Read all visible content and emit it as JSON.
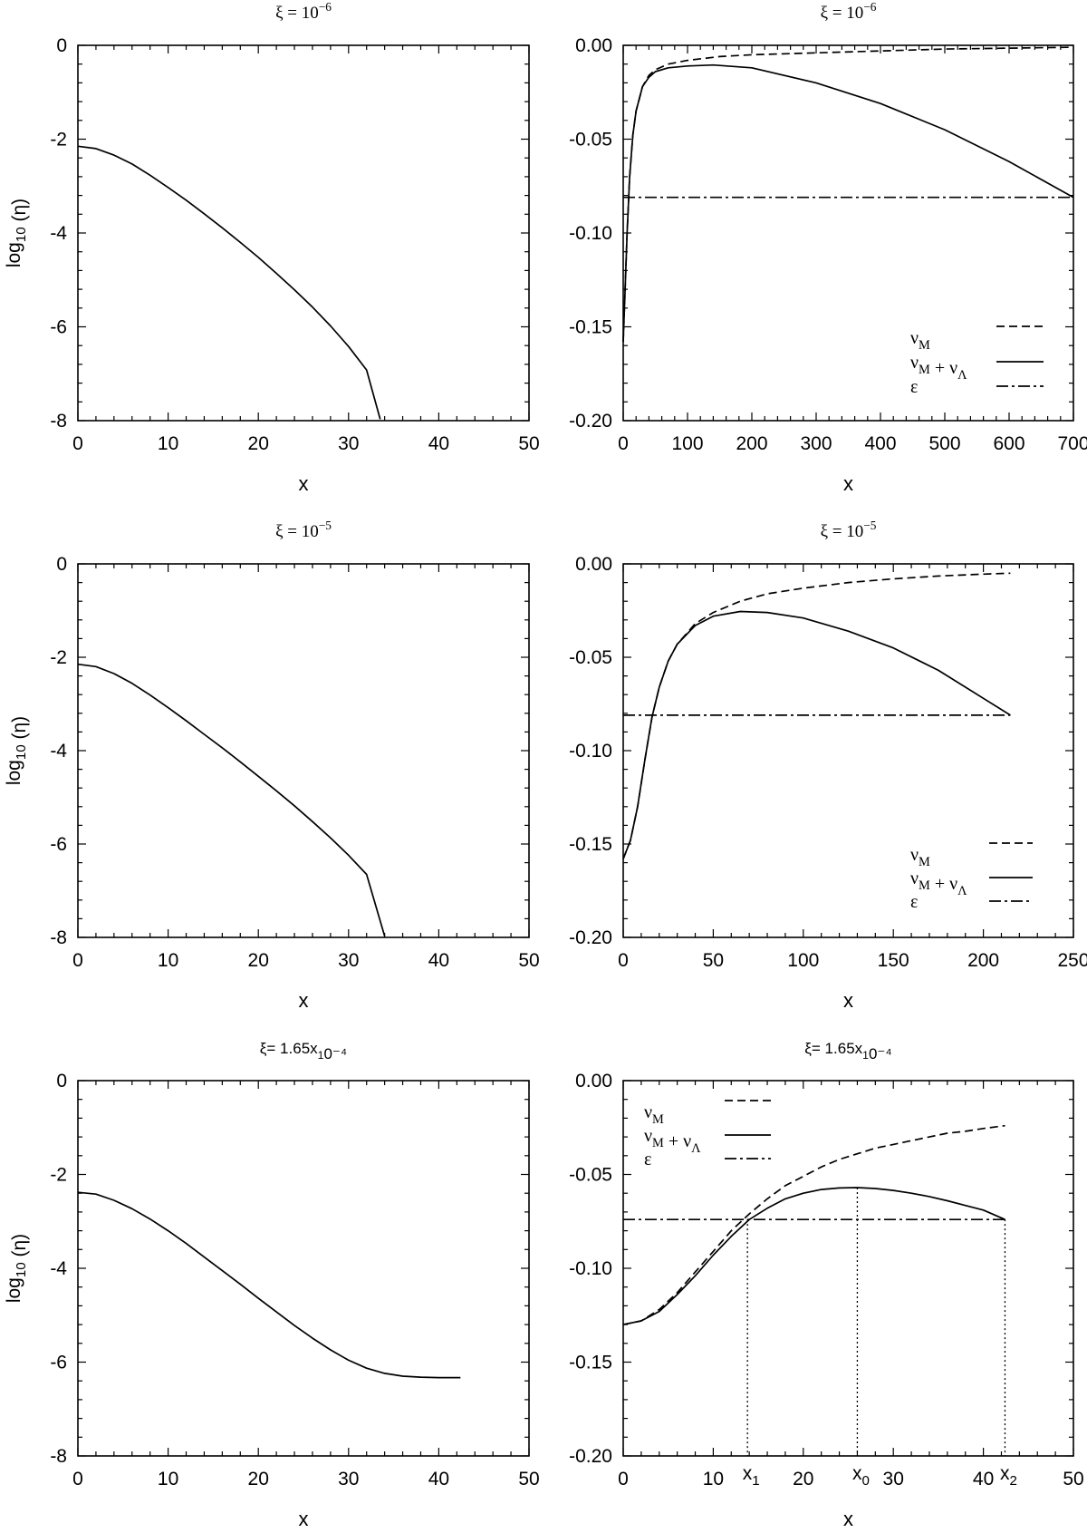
{
  "chart_data": [
    {
      "id": "p1",
      "type": "line",
      "title": "ξ = 10⁻⁶",
      "xlabel": "x",
      "ylabel": "log10 (η)",
      "xlim": [
        0,
        50
      ],
      "ylim": [
        -8,
        0
      ],
      "xticks": [
        0,
        10,
        20,
        30,
        40,
        50
      ],
      "yticks": [
        0,
        -2,
        -4,
        -6,
        -8
      ],
      "series": [
        {
          "style": "solid",
          "x": [
            0,
            2,
            4,
            6,
            8,
            10,
            12,
            14,
            16,
            18,
            20,
            22,
            24,
            26,
            28,
            30,
            32,
            33.5
          ],
          "y": [
            -2.15,
            -2.2,
            -2.34,
            -2.53,
            -2.77,
            -3.03,
            -3.3,
            -3.59,
            -3.89,
            -4.2,
            -4.52,
            -4.86,
            -5.21,
            -5.58,
            -5.98,
            -6.42,
            -6.92,
            -7.97
          ]
        }
      ]
    },
    {
      "id": "p2",
      "type": "line",
      "title": "ξ = 10⁻⁶",
      "xlabel": "x",
      "ylabel": "",
      "xlim": [
        0,
        700
      ],
      "ylim": [
        -0.2,
        0
      ],
      "xticks": [
        0,
        100,
        200,
        300,
        400,
        500,
        600,
        700
      ],
      "yticks": [
        0,
        -0.05,
        -0.1,
        -0.15,
        -0.2
      ],
      "ytick_labels": [
        "0.00",
        "-0.05",
        "-0.10",
        "-0.15",
        "-0.20"
      ],
      "legend_position": "bottom-right",
      "series": [
        {
          "name": "νM",
          "style": "dashed",
          "x": [
            0,
            3,
            6,
            10,
            15,
            20,
            30,
            40,
            50,
            70,
            100,
            150,
            200,
            300,
            400,
            500,
            600,
            700
          ],
          "y": [
            -0.158,
            -0.13,
            -0.1,
            -0.07,
            -0.048,
            -0.035,
            -0.022,
            -0.016,
            -0.013,
            -0.01,
            -0.008,
            -0.006,
            -0.005,
            -0.004,
            -0.003,
            -0.002,
            -0.0015,
            -0.001
          ]
        },
        {
          "name": "νM + νΛ",
          "style": "solid",
          "x": [
            0,
            3,
            6,
            10,
            15,
            20,
            30,
            40,
            50,
            70,
            100,
            140,
            200,
            300,
            400,
            500,
            600,
            700
          ],
          "y": [
            -0.158,
            -0.13,
            -0.1,
            -0.07,
            -0.048,
            -0.035,
            -0.022,
            -0.017,
            -0.014,
            -0.012,
            -0.011,
            -0.0105,
            -0.012,
            -0.02,
            -0.031,
            -0.045,
            -0.062,
            -0.081
          ]
        },
        {
          "name": "ε",
          "style": "dashdot",
          "x": [
            0,
            700
          ],
          "y": [
            -0.081,
            -0.081
          ]
        }
      ]
    },
    {
      "id": "p3",
      "type": "line",
      "title": "ξ = 10⁻⁵",
      "xlabel": "x",
      "ylabel": "log10 (η)",
      "xlim": [
        0,
        50
      ],
      "ylim": [
        -8,
        0
      ],
      "xticks": [
        0,
        10,
        20,
        30,
        40,
        50
      ],
      "yticks": [
        0,
        -2,
        -4,
        -6,
        -8
      ],
      "series": [
        {
          "style": "solid",
          "x": [
            0,
            2,
            4,
            6,
            8,
            10,
            12,
            14,
            16,
            18,
            20,
            22,
            24,
            26,
            28,
            30,
            32,
            34
          ],
          "y": [
            -2.15,
            -2.2,
            -2.35,
            -2.56,
            -2.81,
            -3.08,
            -3.36,
            -3.65,
            -3.94,
            -4.24,
            -4.55,
            -4.86,
            -5.18,
            -5.52,
            -5.87,
            -6.24,
            -6.65,
            -7.97
          ]
        }
      ]
    },
    {
      "id": "p4",
      "type": "line",
      "title": "ξ = 10⁻⁵",
      "xlabel": "x",
      "ylabel": "",
      "xlim": [
        0,
        250
      ],
      "ylim": [
        -0.2,
        0
      ],
      "xticks": [
        0,
        50,
        100,
        150,
        200,
        250
      ],
      "yticks": [
        0,
        -0.05,
        -0.1,
        -0.15,
        -0.2
      ],
      "ytick_labels": [
        "0.00",
        "-0.05",
        "-0.10",
        "-0.15",
        "-0.20"
      ],
      "legend_position": "bottom-right",
      "series": [
        {
          "name": "νM",
          "style": "dashed",
          "x": [
            0,
            4,
            8,
            12,
            16,
            20,
            25,
            30,
            40,
            50,
            65,
            80,
            100,
            125,
            150,
            175,
            200,
            215
          ],
          "y": [
            -0.158,
            -0.148,
            -0.13,
            -0.105,
            -0.082,
            -0.066,
            -0.052,
            -0.043,
            -0.032,
            -0.026,
            -0.02,
            -0.016,
            -0.013,
            -0.01,
            -0.008,
            -0.0065,
            -0.0055,
            -0.005
          ]
        },
        {
          "name": "νM + νΛ",
          "style": "solid",
          "x": [
            0,
            4,
            8,
            12,
            16,
            20,
            25,
            30,
            40,
            50,
            65,
            80,
            100,
            125,
            150,
            175,
            200,
            215
          ],
          "y": [
            -0.158,
            -0.148,
            -0.13,
            -0.105,
            -0.082,
            -0.066,
            -0.052,
            -0.043,
            -0.033,
            -0.028,
            -0.0255,
            -0.026,
            -0.029,
            -0.036,
            -0.045,
            -0.057,
            -0.072,
            -0.081
          ]
        },
        {
          "name": "ε",
          "style": "dashdot",
          "x": [
            0,
            215
          ],
          "y": [
            -0.081,
            -0.081
          ]
        }
      ]
    },
    {
      "id": "p5",
      "type": "line",
      "title": "ξ= 1.65x10⁻⁴",
      "xlabel": "x",
      "ylabel": "log10 (η)",
      "xlim": [
        0,
        50
      ],
      "ylim": [
        -8,
        0
      ],
      "xticks": [
        0,
        10,
        20,
        30,
        40,
        50
      ],
      "yticks": [
        0,
        -2,
        -4,
        -6,
        -8
      ],
      "series": [
        {
          "style": "solid",
          "x": [
            0,
            2,
            4,
            6,
            8,
            10,
            12,
            14,
            16,
            18,
            20,
            22,
            24,
            26,
            28,
            30,
            32,
            34,
            36,
            38,
            40,
            42.4
          ],
          "y": [
            -2.38,
            -2.42,
            -2.55,
            -2.73,
            -2.95,
            -3.2,
            -3.47,
            -3.76,
            -4.05,
            -4.34,
            -4.64,
            -4.93,
            -5.22,
            -5.49,
            -5.74,
            -5.96,
            -6.13,
            -6.24,
            -6.3,
            -6.32,
            -6.33,
            -6.33
          ]
        }
      ]
    },
    {
      "id": "p6",
      "type": "line",
      "title": "ξ= 1.65x10⁻⁴",
      "xlabel": "x",
      "ylabel": "",
      "xlim": [
        0,
        50
      ],
      "ylim": [
        -0.2,
        0
      ],
      "xticks": [
        0,
        10,
        20,
        30,
        40,
        50
      ],
      "xtick_labels": [
        "0",
        "10",
        "20",
        "30",
        "40",
        "50"
      ],
      "yticks": [
        0,
        -0.05,
        -0.1,
        -0.15,
        -0.2
      ],
      "ytick_labels": [
        "0.00",
        "-0.05",
        "-0.10",
        "-0.15",
        "-0.20"
      ],
      "legend_position": "top-left",
      "series": [
        {
          "name": "νM",
          "style": "dashed",
          "x": [
            0,
            2,
            4,
            6,
            8,
            10,
            12,
            14,
            16,
            18,
            20,
            22,
            24,
            26,
            28,
            30,
            32,
            34,
            36,
            38,
            40,
            42.4
          ],
          "y": [
            -0.13,
            -0.128,
            -0.122,
            -0.113,
            -0.102,
            -0.091,
            -0.08,
            -0.071,
            -0.063,
            -0.056,
            -0.051,
            -0.046,
            -0.042,
            -0.039,
            -0.036,
            -0.034,
            -0.032,
            -0.03,
            -0.028,
            -0.027,
            -0.0255,
            -0.024
          ]
        },
        {
          "name": "νM + νΛ",
          "style": "solid",
          "x": [
            0,
            2,
            4,
            6,
            8,
            10,
            12,
            14,
            16,
            18,
            20,
            22,
            24,
            26,
            28,
            30,
            32,
            34,
            36,
            38,
            40,
            42.4
          ],
          "y": [
            -0.13,
            -0.128,
            -0.123,
            -0.114,
            -0.104,
            -0.093,
            -0.083,
            -0.074,
            -0.068,
            -0.063,
            -0.06,
            -0.058,
            -0.0572,
            -0.057,
            -0.0575,
            -0.0585,
            -0.06,
            -0.0618,
            -0.064,
            -0.0665,
            -0.069,
            -0.074
          ]
        },
        {
          "name": "ε",
          "style": "dashdot",
          "x": [
            0,
            42.4
          ],
          "y": [
            -0.074,
            -0.074
          ]
        }
      ],
      "markers": [
        {
          "label": "x1",
          "x": 13.8,
          "y": -0.074
        },
        {
          "label": "x0",
          "x": 26,
          "y": -0.057
        },
        {
          "label": "x2",
          "x": 42.4,
          "y": -0.074
        }
      ]
    }
  ]
}
